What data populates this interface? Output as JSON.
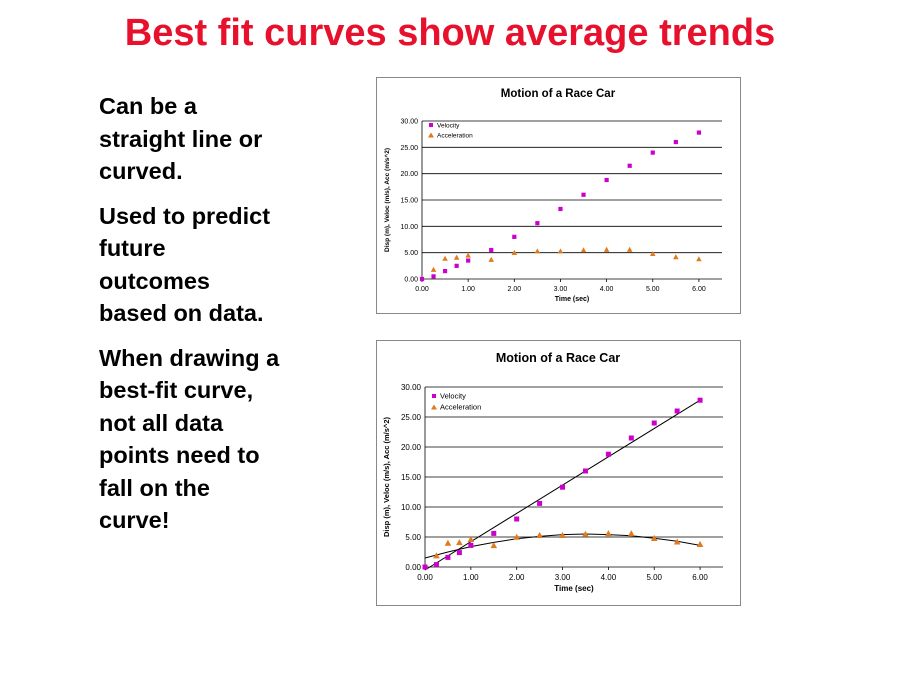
{
  "slide": {
    "title": "Best fit curves show average trends",
    "bullets": [
      "Can be a\nstraight line or\ncurved.",
      "Used to predict\nfuture\noutcomes\nbased on data.",
      "When drawing a\nbest-fit curve,\nnot all data\npoints need to\nfall on the\ncurve!"
    ]
  },
  "colors": {
    "title": "#e8112d",
    "velocity": "#cc00cc",
    "acceleration": "#e07a1f"
  },
  "chart_data": [
    {
      "type": "scatter",
      "title": "Motion of a Race Car",
      "xlabel": "Time (sec)",
      "ylabel": "Disp (m), Veloc (m/s), Acc (m/s^2)",
      "xlim": [
        0,
        6.5
      ],
      "ylim": [
        0,
        30
      ],
      "x_ticks": [
        "0.00",
        "1.00",
        "2.00",
        "3.00",
        "4.00",
        "5.00",
        "6.00"
      ],
      "y_ticks": [
        "0.00",
        "5.00",
        "10.00",
        "15.00",
        "20.00",
        "25.00",
        "30.00"
      ],
      "grid": "horizontal",
      "legend": "top-left",
      "series": [
        {
          "name": "Velocity",
          "marker": "square",
          "x": [
            0,
            0.25,
            0.5,
            0.75,
            1.0,
            1.5,
            2.0,
            2.5,
            3.0,
            3.5,
            4.0,
            4.5,
            5.0,
            5.5,
            6.0
          ],
          "y": [
            0,
            0.5,
            1.5,
            2.5,
            3.5,
            5.5,
            8.0,
            10.6,
            13.3,
            16.0,
            18.8,
            21.5,
            24.0,
            26.0,
            27.8
          ]
        },
        {
          "name": "Acceleration",
          "marker": "triangle",
          "x": [
            0.25,
            0.5,
            0.75,
            1.0,
            1.5,
            2.0,
            2.5,
            3.0,
            3.5,
            4.0,
            4.5,
            5.0,
            5.5,
            6.0
          ],
          "y": [
            1.8,
            3.9,
            4.1,
            4.5,
            3.7,
            5.0,
            5.3,
            5.3,
            5.5,
            5.6,
            5.6,
            4.8,
            4.2,
            3.8
          ]
        }
      ],
      "trendlines": []
    },
    {
      "type": "scatter",
      "title": "Motion of a Race Car",
      "xlabel": "Time (sec)",
      "ylabel": "Disp (m), Veloc (m/s), Acc (m/s^2)",
      "xlim": [
        0,
        6.5
      ],
      "ylim": [
        0,
        30
      ],
      "x_ticks": [
        "0.00",
        "1.00",
        "2.00",
        "3.00",
        "4.00",
        "5.00",
        "6.00"
      ],
      "y_ticks": [
        "0.00",
        "5.00",
        "10.00",
        "15.00",
        "20.00",
        "25.00",
        "30.00"
      ],
      "grid": "horizontal",
      "legend": "top-left",
      "series": [
        {
          "name": "Velocity",
          "marker": "square",
          "x": [
            0,
            0.25,
            0.5,
            0.75,
            1.0,
            1.5,
            2.0,
            2.5,
            3.0,
            3.5,
            4.0,
            4.5,
            5.0,
            5.5,
            6.0
          ],
          "y": [
            0,
            0.4,
            1.6,
            2.4,
            3.6,
            5.6,
            8.0,
            10.6,
            13.3,
            16.0,
            18.8,
            21.5,
            24.0,
            26.0,
            27.8
          ]
        },
        {
          "name": "Acceleration",
          "marker": "triangle",
          "x": [
            0.25,
            0.5,
            0.75,
            1.0,
            1.5,
            2.0,
            2.5,
            3.0,
            3.5,
            4.0,
            4.5,
            5.0,
            5.5,
            6.0
          ],
          "y": [
            1.9,
            4.0,
            4.1,
            4.6,
            3.6,
            5.0,
            5.3,
            5.3,
            5.5,
            5.6,
            5.6,
            4.8,
            4.2,
            3.8
          ]
        }
      ],
      "trendlines": [
        {
          "series": "Velocity",
          "kind": "linear",
          "x": [
            0,
            6.0
          ],
          "y": [
            -0.5,
            27.8
          ]
        },
        {
          "series": "Acceleration",
          "kind": "polynomial",
          "x": [
            0,
            0.5,
            1.0,
            1.5,
            2.0,
            2.5,
            3.0,
            3.5,
            4.0,
            4.5,
            5.0,
            5.5,
            6.0
          ],
          "y": [
            1.5,
            2.5,
            3.4,
            4.1,
            4.7,
            5.1,
            5.4,
            5.5,
            5.4,
            5.2,
            4.8,
            4.3,
            3.6
          ]
        }
      ]
    }
  ]
}
